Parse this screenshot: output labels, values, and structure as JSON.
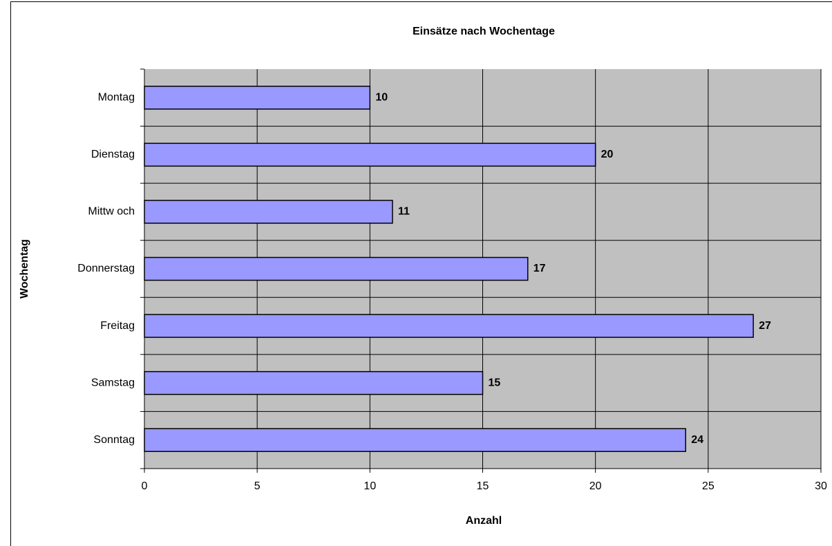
{
  "chart_data": {
    "type": "hbar",
    "title": "Einsätze nach Wochentage",
    "x_label": "Anzahl",
    "y_label": "Wochentag",
    "categories": [
      "Montag",
      "Dienstag",
      "Mittw och",
      "Donnerstag",
      "Freitag",
      "Samstag",
      "Sonntag"
    ],
    "values": [
      10,
      20,
      11,
      17,
      27,
      15,
      24
    ],
    "color": "#9999ff",
    "plot_background": "#c0c0c0",
    "xlim": [
      0,
      30
    ],
    "xticks": [
      0,
      5,
      10,
      15,
      20,
      25,
      30
    ],
    "grid": true,
    "data_labels": true
  }
}
